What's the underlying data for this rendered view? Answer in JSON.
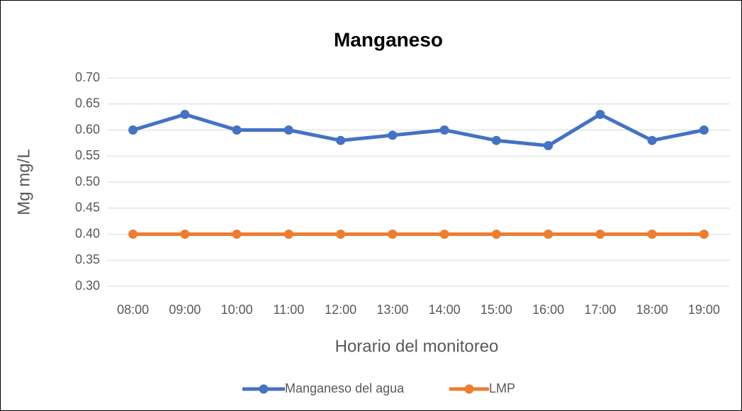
{
  "chart_data": {
    "type": "line",
    "title": "Manganeso",
    "x_label": "Horario del monitoreo",
    "y_label": "Mg mg/L",
    "categories": [
      "08:00",
      "09:00",
      "10:00",
      "11:00",
      "12:00",
      "13:00",
      "14:00",
      "15:00",
      "16:00",
      "17:00",
      "18:00",
      "19:00"
    ],
    "series": [
      {
        "name": "Manganeso del agua",
        "color": "#4472c4",
        "values": [
          0.6,
          0.63,
          0.6,
          0.6,
          0.58,
          0.59,
          0.6,
          0.58,
          0.57,
          0.63,
          0.58,
          0.6
        ]
      },
      {
        "name": "LMP",
        "color": "#ed7d31",
        "values": [
          0.4,
          0.4,
          0.4,
          0.4,
          0.4,
          0.4,
          0.4,
          0.4,
          0.4,
          0.4,
          0.4,
          0.4
        ]
      }
    ],
    "ylim": [
      0.3,
      0.7
    ],
    "yticks": [
      {
        "value": 0.3,
        "label": "0.30"
      },
      {
        "value": 0.35,
        "label": "0.35"
      },
      {
        "value": 0.4,
        "label": "0.40"
      },
      {
        "value": 0.45,
        "label": "0.45"
      },
      {
        "value": 0.5,
        "label": "0.50"
      },
      {
        "value": 0.55,
        "label": "0.55"
      },
      {
        "value": 0.6,
        "label": "0.60"
      },
      {
        "value": 0.65,
        "label": "0.65"
      },
      {
        "value": 0.7,
        "label": "0.70"
      }
    ],
    "grid": true,
    "legend": "bottom"
  }
}
